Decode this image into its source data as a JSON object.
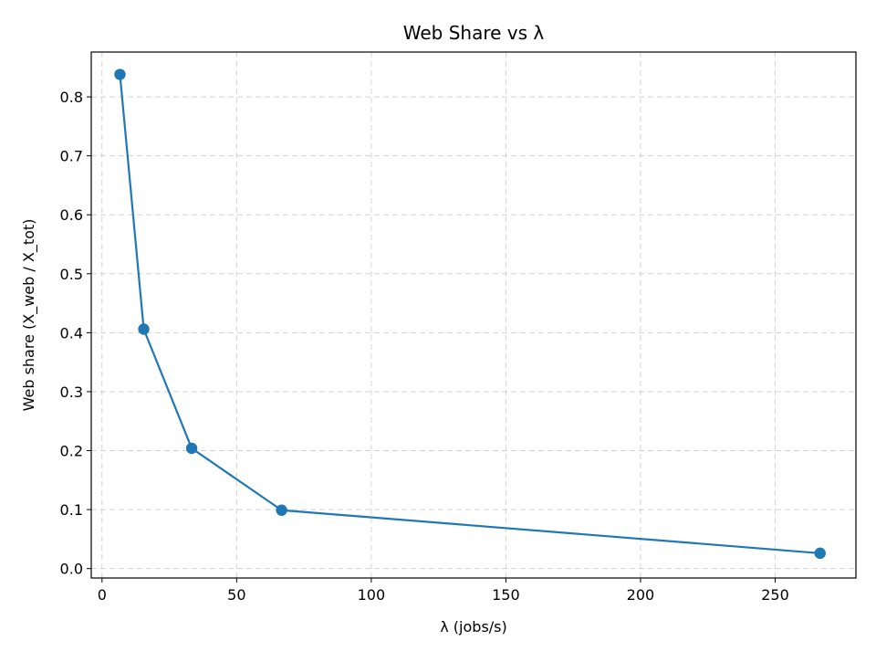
{
  "chart_data": {
    "type": "line",
    "title": "Web Share vs λ",
    "xlabel": "λ (jobs/s)",
    "ylabel": "Web share (X_web / X_tot)",
    "xlim": [
      -4,
      280
    ],
    "ylim": [
      -0.016,
      0.876
    ],
    "xticks": [
      0,
      50,
      100,
      150,
      200,
      250
    ],
    "yticks": [
      0.0,
      0.1,
      0.2,
      0.3,
      0.4,
      0.5,
      0.6,
      0.7,
      0.8
    ],
    "grid": true,
    "series": [
      {
        "color": "#1f77b4",
        "marker": "circle",
        "x": [
          6.67,
          15.5,
          33.3,
          66.7,
          266.7
        ],
        "y": [
          0.838,
          0.406,
          0.204,
          0.099,
          0.026
        ]
      }
    ]
  }
}
